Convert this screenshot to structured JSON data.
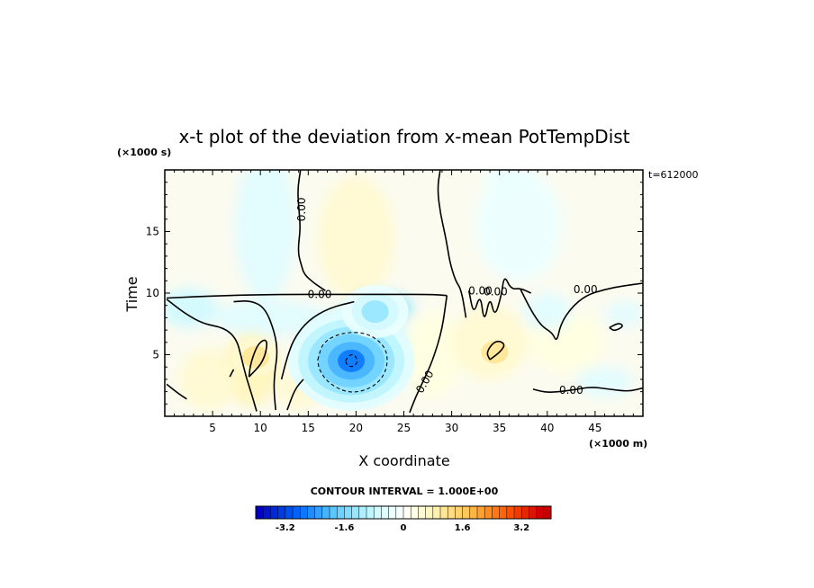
{
  "chart_data": {
    "type": "heatmap",
    "title": "x-t plot of the deviation from x-mean PotTempDist",
    "xlabel": "X coordinate",
    "ylabel": "Time",
    "x_unit": "(×1000 m)",
    "y_unit": "(×1000 s)",
    "time_stamp": "t=612000",
    "xlim": [
      0,
      50
    ],
    "ylim": [
      0,
      20
    ],
    "x_ticks": [
      5,
      10,
      15,
      20,
      25,
      30,
      35,
      40,
      45
    ],
    "x_tick_labels": [
      "5",
      "10",
      "15",
      "20",
      "25",
      "30",
      "35",
      "40",
      "45"
    ],
    "y_ticks": [
      5,
      10,
      15
    ],
    "y_tick_labels": [
      "5",
      "10",
      "15"
    ],
    "contour_interval_label": "CONTOUR INTERVAL = 1.000E+00",
    "contour_line_labels": [
      "0.00",
      "0.00",
      "0.00",
      "0.00",
      "0.00",
      "0.00",
      "0.00"
    ],
    "colorbar": {
      "range": [
        -4,
        4
      ],
      "step": 0.2,
      "tick_values": [
        -3.2,
        -1.6,
        0,
        1.6,
        3.2
      ],
      "tick_labels": [
        "-3.2",
        "-1.6",
        "0",
        "1.6",
        "3.2"
      ],
      "colors": [
        "#0000c8",
        "#0014d2",
        "#0028dc",
        "#003ce6",
        "#0050f0",
        "#0064fa",
        "#0a78ff",
        "#1e8cff",
        "#32a0ff",
        "#46b4ff",
        "#5ac8ff",
        "#6ed2ff",
        "#82dcff",
        "#96e6ff",
        "#aaf0ff",
        "#bef5ff",
        "#d2faff",
        "#e1fcff",
        "#ebffff",
        "#f5ffff",
        "#fffff5",
        "#ffffe1",
        "#fffad2",
        "#fff5be",
        "#fff0aa",
        "#ffe696",
        "#ffdc82",
        "#ffd26e",
        "#ffc85a",
        "#ffb446",
        "#ffa032",
        "#ff8c1e",
        "#ff7814",
        "#ff640a",
        "#ff5000",
        "#f03c00",
        "#e62800",
        "#dc1400",
        "#d20000",
        "#c80000"
      ]
    },
    "features": [
      {
        "kind": "min",
        "x": 19.5,
        "t": 4.5,
        "value": -2.6
      },
      {
        "kind": "max",
        "x": 9.5,
        "t": 4.8,
        "value": 1.1
      },
      {
        "kind": "max",
        "x": 34.5,
        "t": 5.2,
        "value": 1.0
      },
      {
        "kind": "min",
        "x": 10.5,
        "t": 17.5,
        "value": -0.5
      },
      {
        "kind": "min",
        "x": 35.0,
        "t": 19.5,
        "value": -0.4
      },
      {
        "kind": "max",
        "x": 20.0,
        "t": 12.0,
        "value": 0.4
      },
      {
        "kind": "min",
        "x": 22.0,
        "t": 8.5,
        "value": -1.2
      },
      {
        "kind": "min",
        "x": 3.0,
        "t": 8.5,
        "value": -0.7
      },
      {
        "kind": "max",
        "x": 5.0,
        "t": 3.5,
        "value": 0.5
      },
      {
        "kind": "max",
        "x": 44.0,
        "t": 6.5,
        "value": 0.3
      },
      {
        "kind": "min",
        "x": 46.0,
        "t": 2.5,
        "value": -0.5
      },
      {
        "kind": "min",
        "x": 40.0,
        "t": 9.0,
        "value": -0.6
      }
    ]
  }
}
